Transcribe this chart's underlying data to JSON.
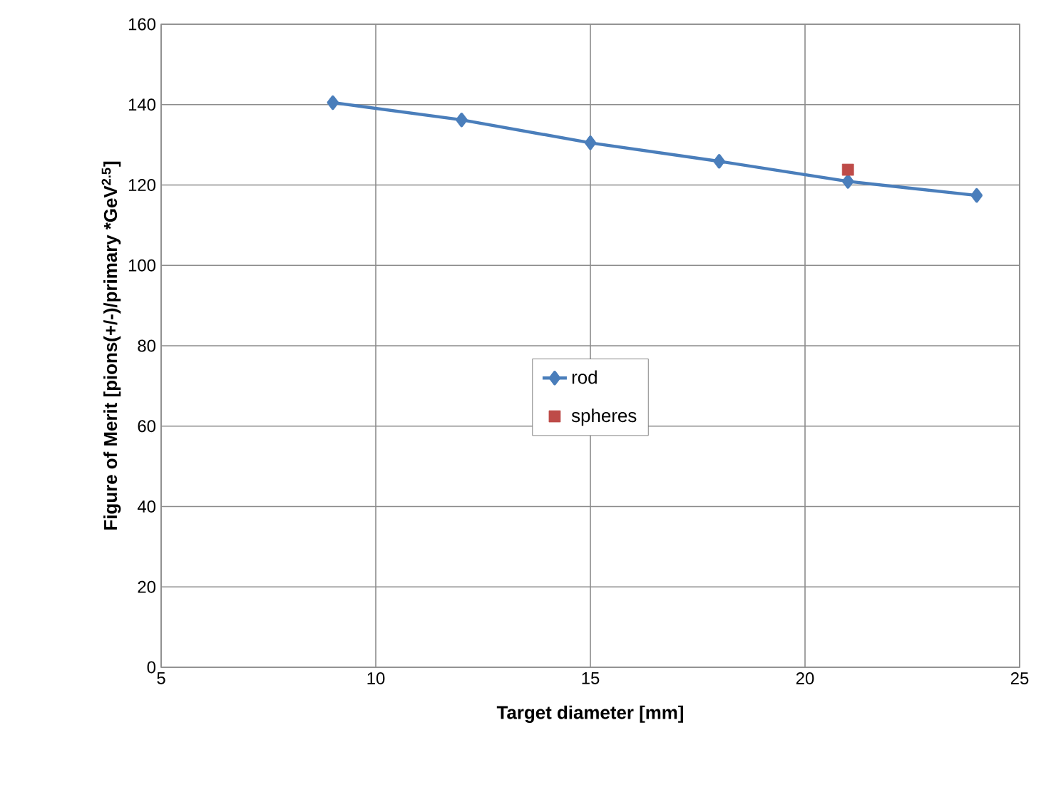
{
  "chart_data": {
    "type": "line",
    "xlabel": "Target diameter [mm]",
    "ylabel": "Figure of Merit [pions(+/-)/primary *GeV$^{2.5}$]",
    "series": [
      {
        "name": "rod",
        "color": "#4a7ebb",
        "marker": "diamond",
        "x": [
          9,
          12,
          15,
          18,
          21,
          24
        ],
        "values": [
          140.5,
          136.2,
          130.5,
          125.9,
          120.9,
          117.4
        ]
      },
      {
        "name": "spheres",
        "color": "#be4b48",
        "type": "scatter",
        "marker": "square",
        "x": [
          21
        ],
        "values": [
          123.8
        ]
      }
    ],
    "xlim": [
      5,
      25
    ],
    "xticks": [
      5,
      10,
      15,
      20,
      25
    ],
    "ylim": [
      0,
      160
    ],
    "yticks": [
      0,
      20,
      40,
      60,
      80,
      100,
      120,
      140,
      160
    ],
    "grid": true,
    "legend": "center"
  }
}
